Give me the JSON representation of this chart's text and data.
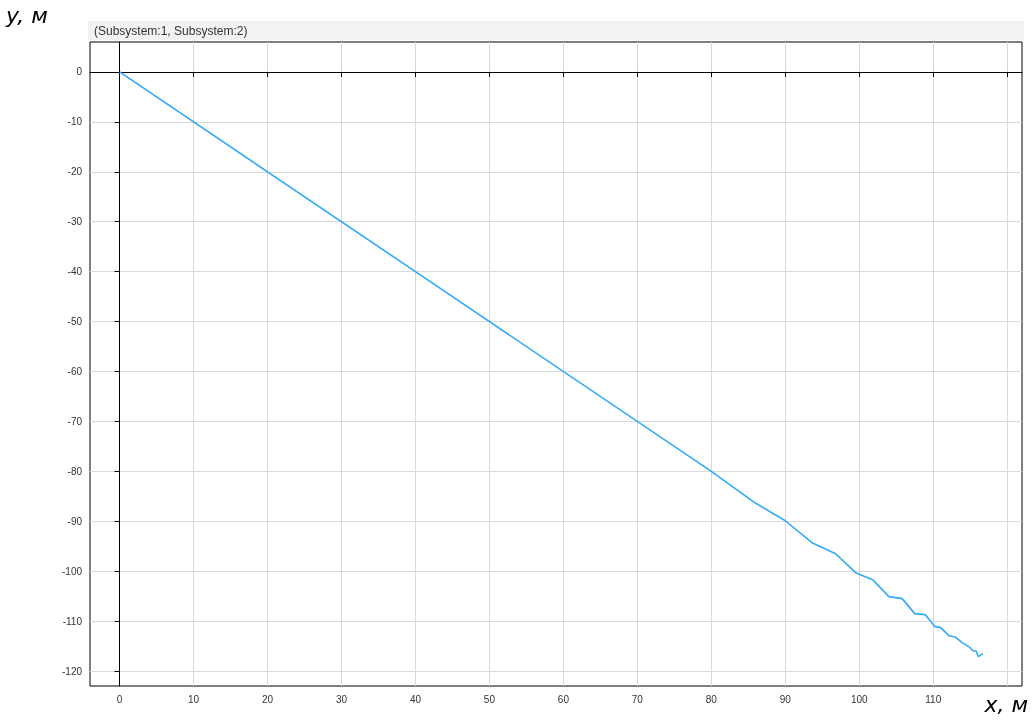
{
  "chart_data": {
    "type": "line",
    "title": "(Subsystem:1, Subsystem:2)",
    "xlabel": "x, м",
    "ylabel": "y, м",
    "series": [
      {
        "color": "#33aaf5",
        "x": [
          0,
          40,
          80,
          85.9,
          90,
          93.6,
          96.8,
          99.5,
          101.8,
          104,
          105.8,
          107.5,
          108.9,
          110.2,
          111,
          112.2,
          113,
          113.9,
          114.8,
          115.4,
          115.8,
          116.1,
          116.7
        ],
        "values": [
          0,
          -40,
          -80,
          -86.3,
          -89.9,
          -94.3,
          -96.5,
          -100.3,
          -101.7,
          -105.1,
          -105.5,
          -108.5,
          -108.7,
          -111.1,
          -111.3,
          -113,
          -113.2,
          -114.3,
          -115.1,
          -116,
          -116,
          -117.1,
          -116.5
        ]
      }
    ],
    "xlim": [
      -4,
      122
    ],
    "xticks": [
      0,
      10,
      20,
      30,
      40,
      50,
      60,
      70,
      80,
      90,
      100,
      110,
      {
        "value": 120,
        "label": null
      }
    ],
    "ylim": [
      -123,
      6
    ],
    "yticks": [
      -120,
      -110,
      -100,
      -90,
      -80,
      -70,
      -60,
      -50,
      -40,
      -30,
      -20,
      -10,
      0
    ],
    "grid": true,
    "marker": "none",
    "line_style": "solid"
  }
}
